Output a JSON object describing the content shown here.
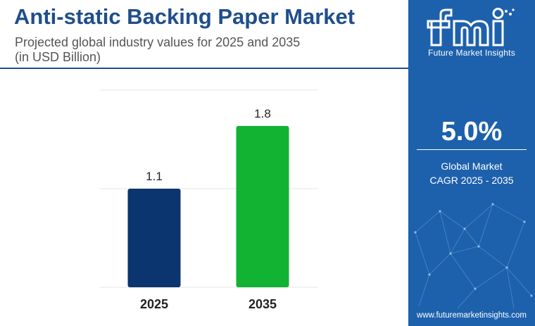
{
  "header": {
    "title": "Anti-static Backing Paper Market",
    "subtitle_line1": "Projected global industry values for 2025 and 2035",
    "subtitle_line2": "(in USD Billion)"
  },
  "chart_data": {
    "type": "bar",
    "categories": [
      "2025",
      "2035"
    ],
    "values": [
      1.1,
      1.8
    ],
    "value_labels": [
      "1.1",
      "1.8"
    ],
    "colors": [
      "#0b356e",
      "#12b232"
    ],
    "title": "Anti-static Backing Paper Market",
    "xlabel": "",
    "ylabel": "",
    "ylim": [
      0,
      2.2
    ],
    "grid": true,
    "legend": "none"
  },
  "sidebar": {
    "brand": "Future Market Insights",
    "logo_icon": "fmi-logo-icon",
    "cagr_value": "5.0%",
    "cagr_label_line1": "Global Market",
    "cagr_label_line2": "CAGR 2025 - 2035",
    "website": "www.futuremarketinsights.com",
    "background_color": "#1d61ad"
  }
}
